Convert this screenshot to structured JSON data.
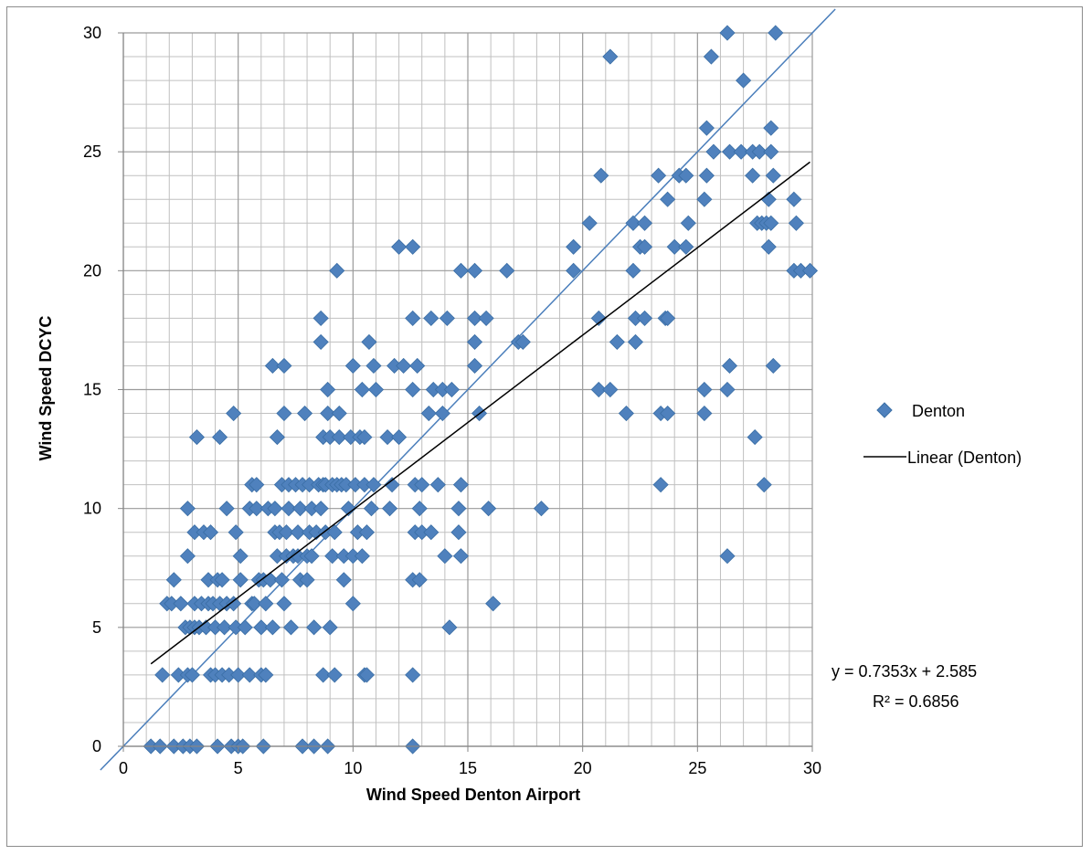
{
  "chart_data": {
    "type": "scatter",
    "title": "",
    "xlabel": "Wind Speed Denton Airport",
    "ylabel": "Wind Speed DCYC",
    "xlim": [
      0,
      30
    ],
    "ylim": [
      0,
      30
    ],
    "x_ticks": [
      "0",
      "5",
      "10",
      "15",
      "20",
      "25",
      "30"
    ],
    "y_ticks": [
      "0",
      "5",
      "10",
      "15",
      "20",
      "25",
      "30"
    ],
    "grid": "major and minor",
    "legend_position": "right",
    "colors": {
      "marker": "#4f81bd",
      "marker_edge": "#3a6ea5",
      "trend": "#000000",
      "identity": "#4a7ebb",
      "grid": "#c0c0c0"
    },
    "series": [
      {
        "name": "Denton",
        "marker": "diamond",
        "points": [
          [
            1.2,
            0
          ],
          [
            1.6,
            0
          ],
          [
            1.7,
            3
          ],
          [
            1.9,
            6
          ],
          [
            2.1,
            6
          ],
          [
            2.2,
            7
          ],
          [
            2.2,
            0
          ],
          [
            2.4,
            3
          ],
          [
            2.5,
            6
          ],
          [
            2.6,
            0
          ],
          [
            2.7,
            5
          ],
          [
            2.8,
            3
          ],
          [
            2.8,
            8
          ],
          [
            2.8,
            10
          ],
          [
            2.9,
            0
          ],
          [
            2.9,
            5
          ],
          [
            3.0,
            3
          ],
          [
            3.1,
            5
          ],
          [
            3.1,
            6
          ],
          [
            3.1,
            9
          ],
          [
            3.2,
            13
          ],
          [
            3.2,
            0
          ],
          [
            3.3,
            5
          ],
          [
            3.4,
            6
          ],
          [
            3.5,
            9
          ],
          [
            3.6,
            5
          ],
          [
            3.7,
            7
          ],
          [
            3.7,
            6
          ],
          [
            3.8,
            3
          ],
          [
            3.8,
            9
          ],
          [
            3.9,
            6
          ],
          [
            4.0,
            5
          ],
          [
            4.0,
            3
          ],
          [
            4.1,
            7
          ],
          [
            4.1,
            0
          ],
          [
            4.2,
            13
          ],
          [
            4.2,
            6
          ],
          [
            4.3,
            7
          ],
          [
            4.3,
            3
          ],
          [
            4.4,
            5
          ],
          [
            4.5,
            10
          ],
          [
            4.5,
            6
          ],
          [
            4.6,
            3
          ],
          [
            4.7,
            0
          ],
          [
            4.8,
            14
          ],
          [
            4.8,
            6
          ],
          [
            4.9,
            5
          ],
          [
            4.9,
            9
          ],
          [
            5.0,
            3
          ],
          [
            5.0,
            0
          ],
          [
            5.1,
            8
          ],
          [
            5.1,
            7
          ],
          [
            5.2,
            0
          ],
          [
            5.3,
            5
          ],
          [
            5.5,
            10
          ],
          [
            5.5,
            3
          ],
          [
            5.6,
            11
          ],
          [
            5.6,
            6
          ],
          [
            5.7,
            6
          ],
          [
            5.8,
            10
          ],
          [
            5.8,
            11
          ],
          [
            5.9,
            7
          ],
          [
            6.0,
            5
          ],
          [
            6.0,
            3
          ],
          [
            6.1,
            0
          ],
          [
            6.1,
            7
          ],
          [
            6.2,
            3
          ],
          [
            6.2,
            6
          ],
          [
            6.3,
            10
          ],
          [
            6.4,
            7
          ],
          [
            6.5,
            16
          ],
          [
            6.5,
            5
          ],
          [
            6.6,
            9
          ],
          [
            6.6,
            10
          ],
          [
            6.7,
            13
          ],
          [
            6.7,
            8
          ],
          [
            6.8,
            9
          ],
          [
            6.9,
            7
          ],
          [
            6.9,
            11
          ],
          [
            7.0,
            6
          ],
          [
            7.0,
            14
          ],
          [
            7.0,
            16
          ],
          [
            7.1,
            9
          ],
          [
            7.1,
            8
          ],
          [
            7.2,
            10
          ],
          [
            7.2,
            11
          ],
          [
            7.3,
            5
          ],
          [
            7.4,
            8
          ],
          [
            7.5,
            11
          ],
          [
            7.6,
            9
          ],
          [
            7.6,
            8
          ],
          [
            7.7,
            10
          ],
          [
            7.7,
            7
          ],
          [
            7.8,
            11
          ],
          [
            7.8,
            0
          ],
          [
            7.9,
            14
          ],
          [
            8.0,
            8
          ],
          [
            8.0,
            7
          ],
          [
            8.1,
            11
          ],
          [
            8.1,
            9
          ],
          [
            8.2,
            10
          ],
          [
            8.2,
            8
          ],
          [
            8.3,
            5
          ],
          [
            8.3,
            0
          ],
          [
            8.4,
            9
          ],
          [
            8.5,
            11
          ],
          [
            8.6,
            17
          ],
          [
            8.6,
            18
          ],
          [
            8.6,
            10
          ],
          [
            8.7,
            11
          ],
          [
            8.7,
            13
          ],
          [
            8.7,
            3
          ],
          [
            8.8,
            9
          ],
          [
            8.8,
            11
          ],
          [
            8.9,
            14
          ],
          [
            8.9,
            15
          ],
          [
            8.9,
            0
          ],
          [
            9.0,
            5
          ],
          [
            9.0,
            13
          ],
          [
            9.1,
            11
          ],
          [
            9.1,
            8
          ],
          [
            9.2,
            3
          ],
          [
            9.2,
            9
          ],
          [
            9.3,
            11
          ],
          [
            9.3,
            20
          ],
          [
            9.4,
            14
          ],
          [
            9.4,
            13
          ],
          [
            9.5,
            11
          ],
          [
            9.6,
            7
          ],
          [
            9.6,
            8
          ],
          [
            9.7,
            11
          ],
          [
            9.8,
            10
          ],
          [
            9.9,
            13
          ],
          [
            10.0,
            16
          ],
          [
            10.0,
            6
          ],
          [
            10.0,
            8
          ],
          [
            10.1,
            11
          ],
          [
            10.2,
            9
          ],
          [
            10.3,
            13
          ],
          [
            10.4,
            15
          ],
          [
            10.4,
            8
          ],
          [
            10.5,
            11
          ],
          [
            10.5,
            13
          ],
          [
            10.5,
            3
          ],
          [
            10.6,
            3
          ],
          [
            10.6,
            9
          ],
          [
            10.7,
            17
          ],
          [
            10.8,
            10
          ],
          [
            10.9,
            11
          ],
          [
            10.9,
            16
          ],
          [
            11.0,
            15
          ],
          [
            11.5,
            13
          ],
          [
            11.6,
            10
          ],
          [
            11.7,
            11
          ],
          [
            11.8,
            16
          ],
          [
            12.0,
            21
          ],
          [
            12.0,
            13
          ],
          [
            12.2,
            16
          ],
          [
            12.6,
            21
          ],
          [
            12.6,
            18
          ],
          [
            12.6,
            15
          ],
          [
            12.6,
            3
          ],
          [
            12.6,
            0
          ],
          [
            12.6,
            7
          ],
          [
            12.7,
            9
          ],
          [
            12.7,
            11
          ],
          [
            12.8,
            16
          ],
          [
            12.9,
            10
          ],
          [
            12.9,
            7
          ],
          [
            13.0,
            9
          ],
          [
            13.0,
            11
          ],
          [
            13.3,
            14
          ],
          [
            13.4,
            18
          ],
          [
            13.4,
            9
          ],
          [
            13.5,
            15
          ],
          [
            13.7,
            11
          ],
          [
            13.9,
            15
          ],
          [
            13.9,
            14
          ],
          [
            14.0,
            8
          ],
          [
            14.1,
            18
          ],
          [
            14.2,
            5
          ],
          [
            14.3,
            15
          ],
          [
            14.6,
            9
          ],
          [
            14.6,
            10
          ],
          [
            14.7,
            8
          ],
          [
            14.7,
            11
          ],
          [
            14.7,
            20
          ],
          [
            15.3,
            20
          ],
          [
            15.3,
            18
          ],
          [
            15.3,
            17
          ],
          [
            15.3,
            16
          ],
          [
            15.5,
            14
          ],
          [
            15.8,
            18
          ],
          [
            15.9,
            10
          ],
          [
            16.1,
            6
          ],
          [
            16.7,
            20
          ],
          [
            17.2,
            17
          ],
          [
            17.4,
            17
          ],
          [
            18.2,
            10
          ],
          [
            19.6,
            21
          ],
          [
            19.6,
            20
          ],
          [
            20.3,
            22
          ],
          [
            20.7,
            18
          ],
          [
            20.7,
            15
          ],
          [
            20.8,
            24
          ],
          [
            21.2,
            29
          ],
          [
            21.2,
            15
          ],
          [
            21.5,
            17
          ],
          [
            21.9,
            14
          ],
          [
            22.2,
            22
          ],
          [
            22.2,
            20
          ],
          [
            22.3,
            18
          ],
          [
            22.3,
            17
          ],
          [
            22.5,
            21
          ],
          [
            22.7,
            22
          ],
          [
            22.7,
            21
          ],
          [
            22.7,
            18
          ],
          [
            23.3,
            24
          ],
          [
            23.4,
            14
          ],
          [
            23.4,
            11
          ],
          [
            23.6,
            18
          ],
          [
            23.7,
            23
          ],
          [
            23.7,
            18
          ],
          [
            23.7,
            14
          ],
          [
            24.0,
            21
          ],
          [
            24.2,
            24
          ],
          [
            24.5,
            24
          ],
          [
            24.5,
            21
          ],
          [
            24.6,
            22
          ],
          [
            25.3,
            23
          ],
          [
            25.3,
            15
          ],
          [
            25.3,
            14
          ],
          [
            25.4,
            26
          ],
          [
            25.4,
            24
          ],
          [
            25.6,
            29
          ],
          [
            25.7,
            25
          ],
          [
            26.3,
            30
          ],
          [
            26.3,
            15
          ],
          [
            26.4,
            25
          ],
          [
            26.4,
            16
          ],
          [
            26.3,
            8
          ],
          [
            26.9,
            25
          ],
          [
            27.0,
            28
          ],
          [
            27.4,
            25
          ],
          [
            27.4,
            24
          ],
          [
            27.5,
            13
          ],
          [
            27.6,
            22
          ],
          [
            27.7,
            25
          ],
          [
            27.8,
            22
          ],
          [
            27.9,
            11
          ],
          [
            28.0,
            22
          ],
          [
            28.1,
            23
          ],
          [
            28.1,
            21
          ],
          [
            28.2,
            26
          ],
          [
            28.2,
            25
          ],
          [
            28.2,
            22
          ],
          [
            28.3,
            16
          ],
          [
            28.3,
            24
          ],
          [
            28.4,
            30
          ],
          [
            29.2,
            20
          ],
          [
            29.2,
            23
          ],
          [
            29.3,
            22
          ],
          [
            29.5,
            20
          ],
          [
            29.9,
            20
          ]
        ]
      }
    ],
    "trendline": {
      "name": "Linear (Denton)",
      "slope": 0.7353,
      "intercept": 2.585,
      "x_range": [
        1.2,
        29.9
      ],
      "equation": "y = 0.7353x + 2.585",
      "r_squared": "R² = 0.6856"
    },
    "reference_line": {
      "type": "y=x",
      "x_range": [
        -1,
        31
      ]
    }
  }
}
